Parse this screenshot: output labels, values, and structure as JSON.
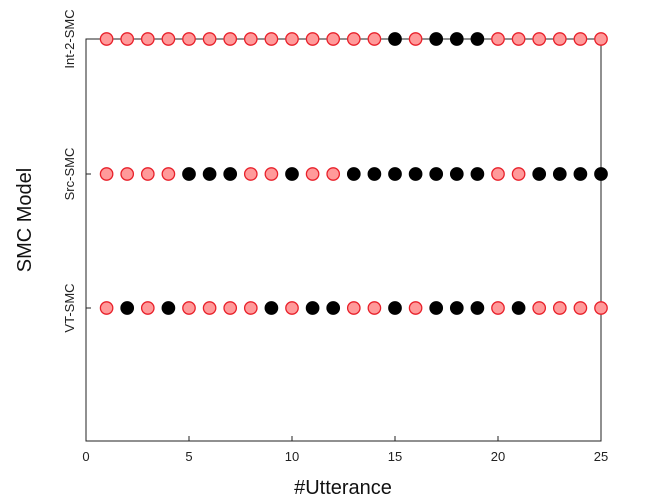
{
  "chart_data": {
    "type": "scatter",
    "xlabel": "#Utterance",
    "ylabel": "SMC Model",
    "xlim": [
      0,
      25
    ],
    "x_ticks": [
      0,
      5,
      10,
      15,
      20,
      25
    ],
    "categories": [
      "VT-SMC",
      "Src-SMC",
      "Int-2-SMC"
    ],
    "grid": false,
    "colors": {
      "hollow_fill": "#ff9a9a",
      "hollow_edge": "#e8202a",
      "solid_fill": "#000000"
    },
    "series": [
      {
        "category": "VT-SMC",
        "x": [
          1,
          2,
          3,
          4,
          5,
          6,
          7,
          8,
          9,
          10,
          11,
          12,
          13,
          14,
          15,
          16,
          17,
          18,
          19,
          20,
          21,
          22,
          23,
          24,
          25
        ],
        "filled": [
          0,
          1,
          0,
          1,
          0,
          0,
          0,
          0,
          1,
          0,
          1,
          1,
          0,
          0,
          1,
          0,
          1,
          1,
          1,
          0,
          1,
          0,
          0,
          0,
          0
        ]
      },
      {
        "category": "Src-SMC",
        "x": [
          1,
          2,
          3,
          4,
          5,
          6,
          7,
          8,
          9,
          10,
          11,
          12,
          13,
          14,
          15,
          16,
          17,
          18,
          19,
          20,
          21,
          22,
          23,
          24,
          25
        ],
        "filled": [
          0,
          0,
          0,
          0,
          1,
          1,
          1,
          0,
          0,
          1,
          0,
          0,
          1,
          1,
          1,
          1,
          1,
          1,
          1,
          0,
          0,
          1,
          1,
          1,
          1
        ]
      },
      {
        "category": "Int-2-SMC",
        "x": [
          1,
          2,
          3,
          4,
          5,
          6,
          7,
          8,
          9,
          10,
          11,
          12,
          13,
          14,
          15,
          16,
          17,
          18,
          19,
          20,
          21,
          22,
          23,
          24,
          25
        ],
        "filled": [
          0,
          0,
          0,
          0,
          0,
          0,
          0,
          0,
          0,
          0,
          0,
          0,
          0,
          0,
          1,
          0,
          1,
          1,
          1,
          0,
          0,
          0,
          0,
          0,
          0
        ]
      }
    ]
  }
}
